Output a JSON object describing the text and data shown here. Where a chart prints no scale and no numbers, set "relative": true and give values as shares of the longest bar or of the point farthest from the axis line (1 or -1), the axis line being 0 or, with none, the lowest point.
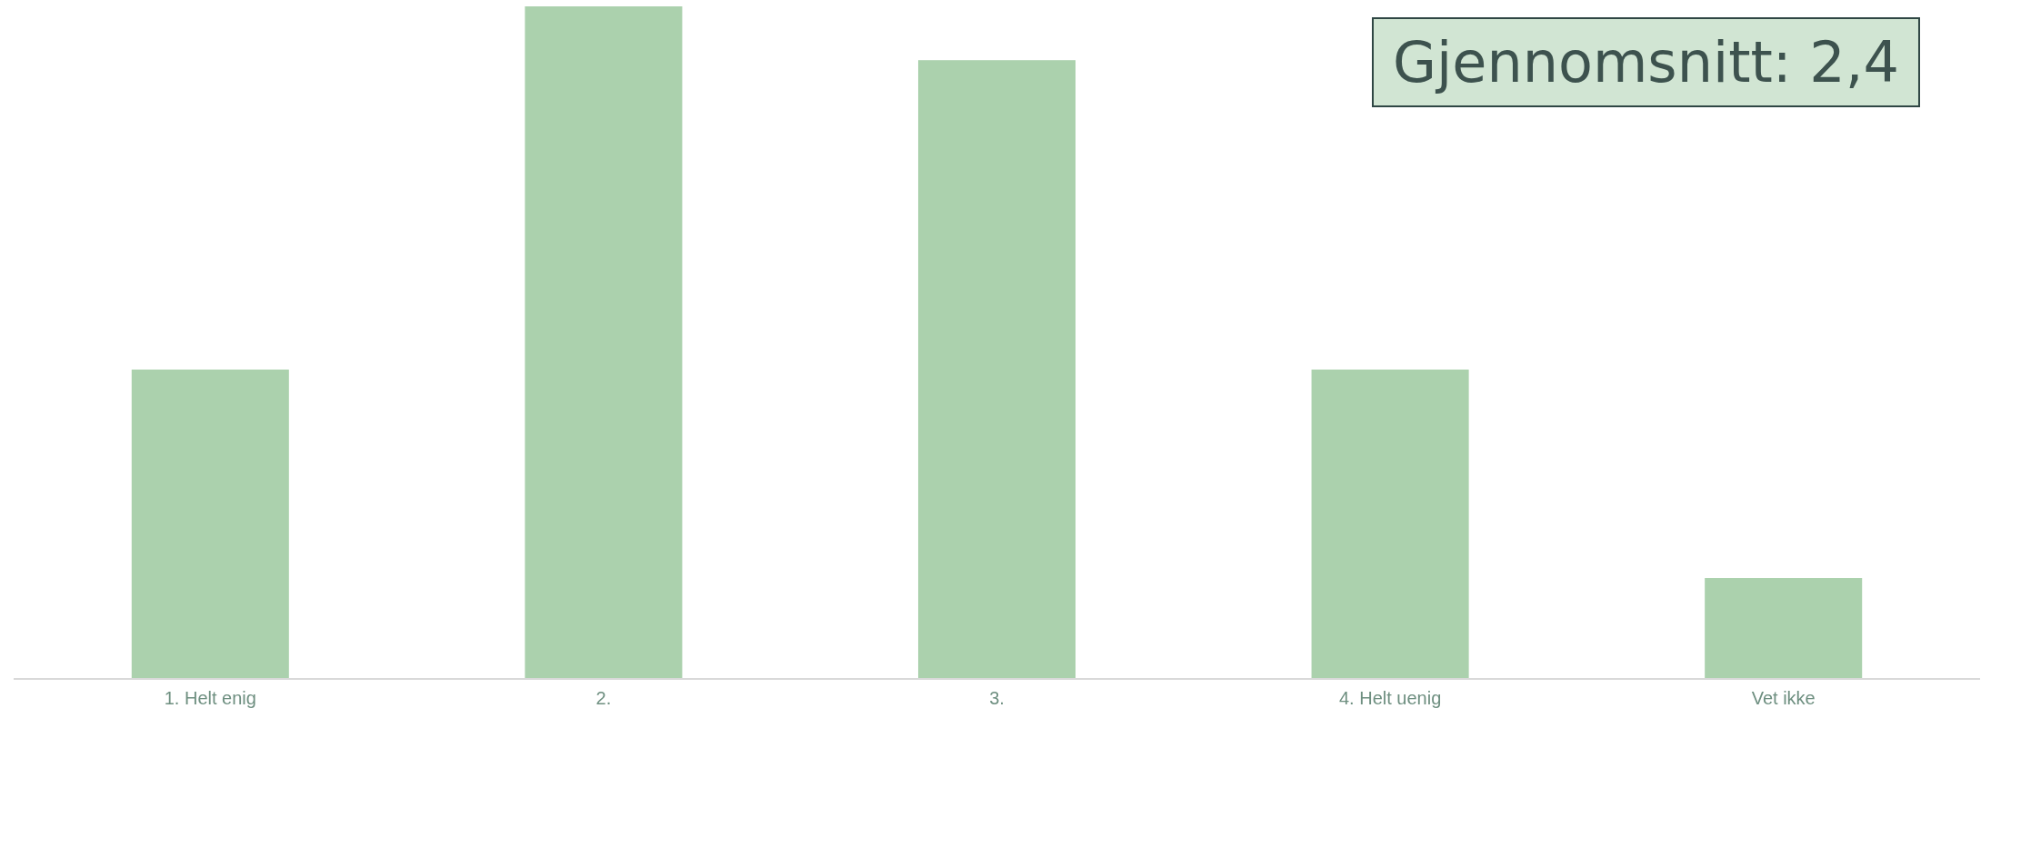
{
  "chart_data": {
    "type": "bar",
    "relative": true,
    "categories": [
      "1. Helt enig",
      "2.",
      "3.",
      "4. Helt uenig",
      "Vet ikke"
    ],
    "values": [
      0.46,
      1,
      0.92,
      0.46,
      0.15
    ],
    "color": "#abd1ad",
    "annotations": [
      "Gjennomsnitt: 2,4"
    ]
  }
}
